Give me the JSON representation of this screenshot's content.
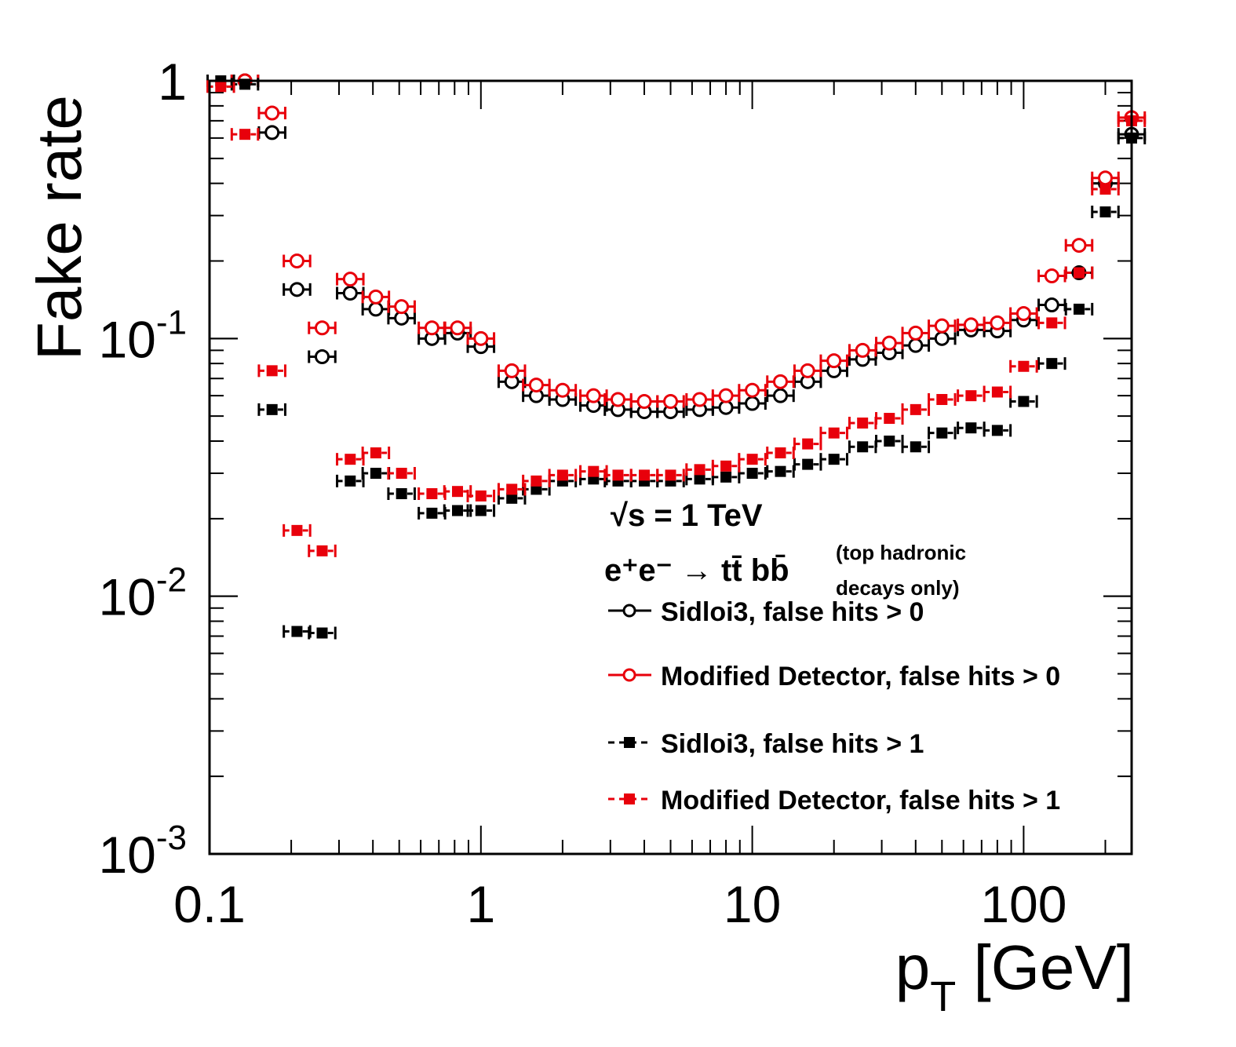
{
  "chart_data": {
    "type": "scatter",
    "x_scale": "log",
    "y_scale": "log",
    "xlim": [
      0.1,
      250
    ],
    "ylim": [
      0.001,
      1
    ],
    "x_tick_labels": [
      "0.1",
      "1",
      "10",
      "100"
    ],
    "x_tick_values": [
      0.1,
      1,
      10,
      100
    ],
    "y_tick_labels": [
      {
        "base": "1",
        "exp": ""
      },
      {
        "base": "10",
        "exp": "-1"
      },
      {
        "base": "10",
        "exp": "-2"
      },
      {
        "base": "10",
        "exp": "-3"
      }
    ],
    "y_tick_values": [
      1,
      0.1,
      0.01,
      0.001
    ],
    "xlabel": {
      "main": "p",
      "sub": "T",
      "unit": " [GeV]"
    },
    "ylabel": "Fake rate",
    "annotations": {
      "energy": "√s = 1 TeV",
      "process_main": "e⁺e⁻ → tt̄ bb̄",
      "process_note_line1": "(top hadronic",
      "process_note_line2": "decays only)"
    },
    "legend_position": "bottom-right",
    "series": [
      {
        "name": "Sidloi3,  false hits > 0",
        "color": "#000000",
        "marker": "open-circle",
        "line": "solid",
        "points": [
          [
            0.135,
            1.0
          ],
          [
            0.17,
            0.63
          ],
          [
            0.21,
            0.155
          ],
          [
            0.26,
            0.085
          ],
          [
            0.33,
            0.15
          ],
          [
            0.41,
            0.13
          ],
          [
            0.51,
            0.12
          ],
          [
            0.66,
            0.1
          ],
          [
            0.82,
            0.105
          ],
          [
            1.0,
            0.093
          ],
          [
            1.3,
            0.068
          ],
          [
            1.6,
            0.06
          ],
          [
            2.0,
            0.058
          ],
          [
            2.6,
            0.055
          ],
          [
            3.2,
            0.053
          ],
          [
            4.0,
            0.052
          ],
          [
            5.0,
            0.052
          ],
          [
            6.4,
            0.053
          ],
          [
            8.0,
            0.054
          ],
          [
            10.0,
            0.056
          ],
          [
            12.7,
            0.06
          ],
          [
            16.0,
            0.068
          ],
          [
            20.0,
            0.075
          ],
          [
            25.5,
            0.083
          ],
          [
            32.0,
            0.088
          ],
          [
            40.0,
            0.094
          ],
          [
            50.0,
            0.1
          ],
          [
            64.0,
            0.108
          ],
          [
            80.0,
            0.107
          ],
          [
            100.0,
            0.118
          ],
          [
            127.0,
            0.135
          ],
          [
            160.0,
            0.18
          ],
          [
            200.0,
            0.4
          ],
          [
            250.0,
            0.62
          ]
        ]
      },
      {
        "name": "Modified Detector,  false hits > 0",
        "color": "#e8000b",
        "marker": "open-circle",
        "line": "solid",
        "points": [
          [
            0.135,
            1.0
          ],
          [
            0.17,
            0.75
          ],
          [
            0.21,
            0.2
          ],
          [
            0.26,
            0.11
          ],
          [
            0.33,
            0.17
          ],
          [
            0.41,
            0.145
          ],
          [
            0.51,
            0.133
          ],
          [
            0.66,
            0.11
          ],
          [
            0.82,
            0.11
          ],
          [
            1.0,
            0.1
          ],
          [
            1.3,
            0.075
          ],
          [
            1.6,
            0.066
          ],
          [
            2.0,
            0.063
          ],
          [
            2.6,
            0.06
          ],
          [
            3.2,
            0.058
          ],
          [
            4.0,
            0.057
          ],
          [
            5.0,
            0.057
          ],
          [
            6.4,
            0.058
          ],
          [
            8.0,
            0.06
          ],
          [
            10.0,
            0.063
          ],
          [
            12.7,
            0.068
          ],
          [
            16.0,
            0.075
          ],
          [
            20.0,
            0.082
          ],
          [
            25.5,
            0.09
          ],
          [
            32.0,
            0.096
          ],
          [
            40.0,
            0.105
          ],
          [
            50.0,
            0.112
          ],
          [
            64.0,
            0.113
          ],
          [
            80.0,
            0.115
          ],
          [
            100.0,
            0.125
          ],
          [
            127.0,
            0.175
          ],
          [
            160.0,
            0.23
          ],
          [
            200.0,
            0.42
          ],
          [
            250.0,
            0.72
          ]
        ]
      },
      {
        "name": "Sidloi3,  false hits > 1",
        "color": "#000000",
        "marker": "filled-square",
        "line": "dashed",
        "points": [
          [
            0.11,
            1.0
          ],
          [
            0.135,
            0.97
          ],
          [
            0.17,
            0.053
          ],
          [
            0.21,
            0.0073
          ],
          [
            0.26,
            0.0072
          ],
          [
            0.33,
            0.028
          ],
          [
            0.41,
            0.03
          ],
          [
            0.51,
            0.025
          ],
          [
            0.66,
            0.021
          ],
          [
            0.82,
            0.0215
          ],
          [
            1.0,
            0.0215
          ],
          [
            1.3,
            0.024
          ],
          [
            1.6,
            0.026
          ],
          [
            2.0,
            0.028
          ],
          [
            2.6,
            0.0285
          ],
          [
            3.2,
            0.028
          ],
          [
            4.0,
            0.028
          ],
          [
            5.0,
            0.028
          ],
          [
            6.4,
            0.0285
          ],
          [
            8.0,
            0.029
          ],
          [
            10.0,
            0.03
          ],
          [
            12.7,
            0.0305
          ],
          [
            16.0,
            0.0325
          ],
          [
            20.0,
            0.034
          ],
          [
            25.5,
            0.038
          ],
          [
            32.0,
            0.04
          ],
          [
            40.0,
            0.038
          ],
          [
            50.0,
            0.043
          ],
          [
            64.0,
            0.045
          ],
          [
            80.0,
            0.044
          ],
          [
            100.0,
            0.057
          ],
          [
            127.0,
            0.08
          ],
          [
            160.0,
            0.13
          ],
          [
            200.0,
            0.31
          ],
          [
            250.0,
            0.6
          ]
        ]
      },
      {
        "name": "Modified Detector,  false hits > 1",
        "color": "#e8000b",
        "marker": "filled-square",
        "line": "dashed",
        "points": [
          [
            0.11,
            0.95
          ],
          [
            0.135,
            0.62
          ],
          [
            0.17,
            0.075
          ],
          [
            0.21,
            0.018
          ],
          [
            0.26,
            0.015
          ],
          [
            0.33,
            0.034
          ],
          [
            0.41,
            0.036
          ],
          [
            0.51,
            0.03
          ],
          [
            0.66,
            0.025
          ],
          [
            0.82,
            0.0255
          ],
          [
            1.0,
            0.0245
          ],
          [
            1.3,
            0.026
          ],
          [
            1.6,
            0.028
          ],
          [
            2.0,
            0.0295
          ],
          [
            2.6,
            0.0305
          ],
          [
            3.2,
            0.0295
          ],
          [
            4.0,
            0.0295
          ],
          [
            5.0,
            0.0295
          ],
          [
            6.4,
            0.031
          ],
          [
            8.0,
            0.032
          ],
          [
            10.0,
            0.034
          ],
          [
            12.7,
            0.036
          ],
          [
            16.0,
            0.039
          ],
          [
            20.0,
            0.043
          ],
          [
            25.5,
            0.047
          ],
          [
            32.0,
            0.049
          ],
          [
            40.0,
            0.053
          ],
          [
            50.0,
            0.058
          ],
          [
            64.0,
            0.06
          ],
          [
            80.0,
            0.062
          ],
          [
            100.0,
            0.078
          ],
          [
            127.0,
            0.115
          ],
          [
            160.0,
            0.18
          ],
          [
            200.0,
            0.38
          ],
          [
            250.0,
            0.7
          ]
        ]
      }
    ]
  }
}
